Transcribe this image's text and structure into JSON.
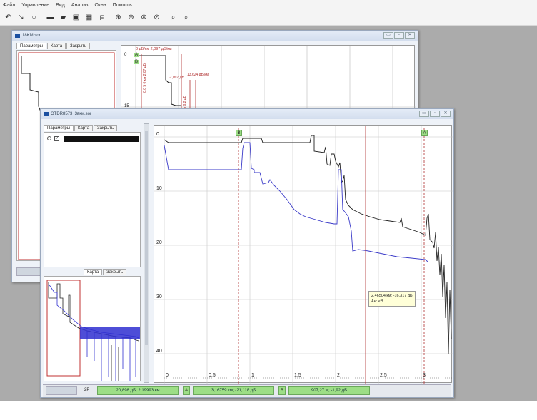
{
  "menu": [
    "Файл",
    "Управление",
    "Вид",
    "Анализ",
    "Окна",
    "Помощь"
  ],
  "toolbar_icons": [
    "undo-icon",
    "cursor-icon",
    "circle-icon",
    "open-icon",
    "open-folder-icon",
    "save-icon",
    "grid-icon",
    "f-icon",
    "zoom-in-icon",
    "zoom-out-icon",
    "zoom-fit-icon",
    "zoom-area-icon",
    "zoom-icon",
    "zoom-reset-icon"
  ],
  "back_window": {
    "title": "18KM.sor",
    "tabs": [
      "Параметры",
      "Карта",
      "Закрыть"
    ],
    "plot_labels": {
      "y0": "0",
      "y15": "15",
      "A": "A",
      "B": "B",
      "header": "0 дБ/км 2,097 дБ/км",
      "ann1": "-2,097 дБ",
      "ann2": "13,624 дБ/км",
      "vert1": "0,0 5 0 км 2,07 дБ",
      "vert2": "2,1 1 км 6,2 дБ"
    }
  },
  "front_window": {
    "title": "OTDR8573_3вкм.sor",
    "tabs": [
      "Параметры",
      "Карта",
      "Закрыть"
    ],
    "lower_tabs": [
      "Карта",
      "Закрыть"
    ],
    "y_ticks": [
      "0",
      "10",
      "20",
      "30",
      "40"
    ],
    "x_ticks": [
      "0",
      "0,5",
      "1",
      "1,5",
      "2",
      "2,5",
      "3"
    ],
    "marker_a": "A",
    "marker_b": "B",
    "tooltip_line1": "2,46504 км; -16,317 дБ",
    "tooltip_line2": "Ан: <B",
    "status": {
      "mode": "2P",
      "cell1": "20,898 дБ; 2,19993 км",
      "tag_a": "A",
      "cell2": "3,16759 км; -21,118 дБ",
      "tag_b": "B",
      "cell3": "907,27 м; -1,92 дБ"
    }
  },
  "colors": {
    "black_trace": "#222222",
    "blue_trace": "#3a3ac8",
    "marker_red": "#b03030",
    "status_green": "#9dde86"
  }
}
